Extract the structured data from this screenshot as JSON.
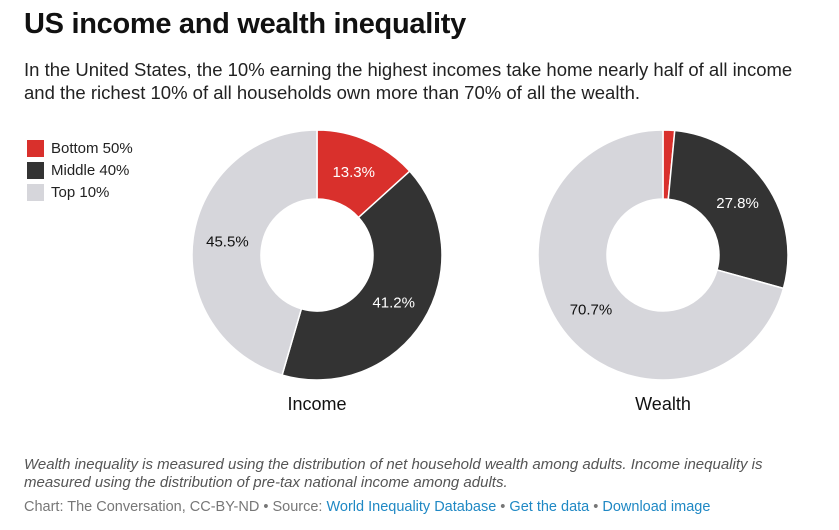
{
  "header": {
    "title": "US income and wealth inequality",
    "subtitle": "In the United States, the 10% earning the highest incomes take home nearly half of all income and the richest 10% of all households own more than 70% of all the wealth."
  },
  "legend": [
    {
      "label": "Bottom 50%",
      "color": "#d9302c"
    },
    {
      "label": "Middle 40%",
      "color": "#333333"
    },
    {
      "label": "Top 10%",
      "color": "#d6d6db"
    }
  ],
  "chart_data": [
    {
      "type": "pie",
      "variant": "donut",
      "title": "Income",
      "categories": [
        "Bottom 50%",
        "Middle 40%",
        "Top 10%"
      ],
      "values": [
        13.3,
        41.2,
        45.5
      ],
      "labels": [
        "13.3%",
        "41.2%",
        "45.5%"
      ],
      "colors": [
        "#d9302c",
        "#333333",
        "#d6d6db"
      ]
    },
    {
      "type": "pie",
      "variant": "donut",
      "title": "Wealth",
      "categories": [
        "Bottom 50%",
        "Middle 40%",
        "Top 10%"
      ],
      "values": [
        1.5,
        27.8,
        70.7
      ],
      "labels": [
        "",
        "27.8%",
        "70.7%"
      ],
      "colors": [
        "#d9302c",
        "#333333",
        "#d6d6db"
      ]
    }
  ],
  "footnote": "Wealth inequality is measured using the distribution of net household wealth among adults. Income inequality is measured using the distribution of pre-tax national income among adults.",
  "footer": {
    "credit": "Chart: The Conversation, CC-BY-ND",
    "sep1": " • Source: ",
    "source_link": "World Inequality Database",
    "sep2": " • ",
    "data_link": "Get the data",
    "sep3": " • ",
    "image_link": "Download image"
  }
}
